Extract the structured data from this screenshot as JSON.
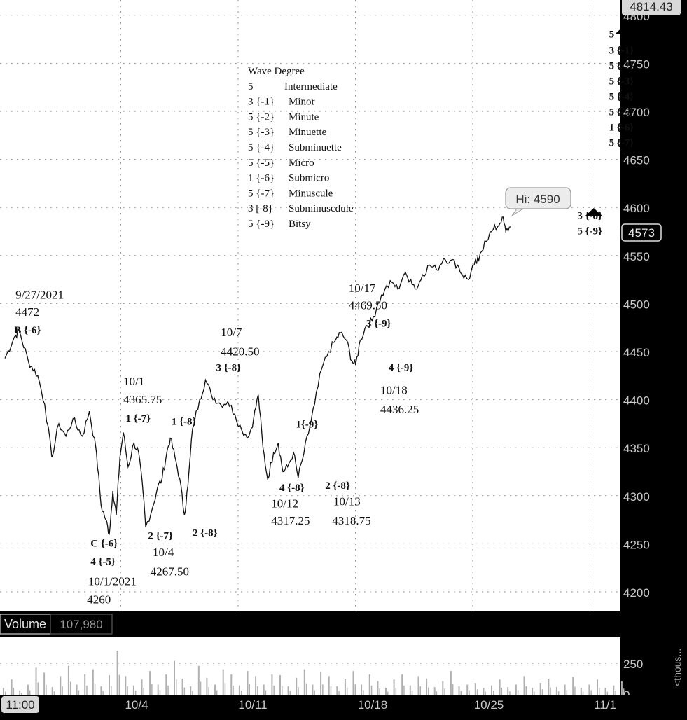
{
  "chart_data": {
    "type": "line",
    "symbol_price_badge": "4573",
    "top_price_badge": "4814.43",
    "price_axis": {
      "ticks": [
        4200,
        4250,
        4300,
        4350,
        4400,
        4450,
        4500,
        4550,
        4600,
        4650,
        4700,
        4750,
        4800
      ],
      "range": [
        4181,
        4814
      ]
    },
    "time_axis": {
      "labels": [
        "11:00",
        "10/4",
        "10/11",
        "10/18",
        "10/25",
        "11/1"
      ]
    },
    "volume_panel": {
      "label": "Volume",
      "value": "107,980",
      "ticks": [
        "250"
      ],
      "side_label": "<thous..."
    },
    "hi_bubble": "Hi: 4590",
    "series": [
      {
        "values": [
          [
            0,
            4443
          ],
          [
            0.4,
            4465
          ],
          [
            0.6,
            4472
          ],
          [
            1.0,
            4440
          ],
          [
            1.4,
            4425
          ],
          [
            1.7,
            4395
          ],
          [
            2.0,
            4340
          ],
          [
            2.3,
            4375
          ],
          [
            2.6,
            4362
          ],
          [
            2.9,
            4380
          ],
          [
            3.3,
            4362
          ],
          [
            3.6,
            4388
          ],
          [
            3.9,
            4345
          ],
          [
            4.1,
            4290
          ],
          [
            4.3,
            4275
          ],
          [
            4.45,
            4260
          ],
          [
            4.6,
            4305
          ],
          [
            4.75,
            4280
          ],
          [
            4.9,
            4340
          ],
          [
            5.05,
            4365.75
          ],
          [
            5.25,
            4330
          ],
          [
            5.5,
            4355
          ],
          [
            5.7,
            4345
          ],
          [
            5.9,
            4300
          ],
          [
            6.0,
            4267.5
          ],
          [
            6.3,
            4288
          ],
          [
            6.5,
            4308
          ],
          [
            6.7,
            4318
          ],
          [
            6.9,
            4345
          ],
          [
            7.05,
            4360
          ],
          [
            7.25,
            4340
          ],
          [
            7.45,
            4318
          ],
          [
            7.65,
            4280
          ],
          [
            7.8,
            4310
          ],
          [
            8.0,
            4370
          ],
          [
            8.3,
            4400
          ],
          [
            8.55,
            4420.5
          ],
          [
            8.8,
            4405
          ],
          [
            9.2,
            4395
          ],
          [
            9.5,
            4398
          ],
          [
            9.8,
            4385
          ],
          [
            10.1,
            4368
          ],
          [
            10.4,
            4362
          ],
          [
            10.6,
            4380
          ],
          [
            10.8,
            4405
          ],
          [
            11.0,
            4350
          ],
          [
            11.2,
            4317.25
          ],
          [
            11.45,
            4345
          ],
          [
            11.65,
            4355
          ],
          [
            11.85,
            4325
          ],
          [
            12.05,
            4330
          ],
          [
            12.3,
            4345
          ],
          [
            12.5,
            4318.75
          ],
          [
            12.75,
            4345
          ],
          [
            13.0,
            4372
          ],
          [
            13.2,
            4395
          ],
          [
            13.5,
            4432
          ],
          [
            13.8,
            4450
          ],
          [
            14.1,
            4462
          ],
          [
            14.3,
            4469.5
          ],
          [
            14.55,
            4462
          ],
          [
            14.8,
            4440
          ],
          [
            14.95,
            4436.25
          ],
          [
            15.15,
            4462
          ],
          [
            15.4,
            4477
          ],
          [
            15.65,
            4482
          ],
          [
            15.9,
            4500
          ],
          [
            16.2,
            4515
          ],
          [
            16.5,
            4522
          ],
          [
            16.75,
            4515
          ],
          [
            17.0,
            4530
          ],
          [
            17.3,
            4525
          ],
          [
            17.55,
            4515
          ],
          [
            17.8,
            4530
          ],
          [
            18.1,
            4540
          ],
          [
            18.4,
            4535
          ],
          [
            18.7,
            4547
          ],
          [
            19.0,
            4545
          ],
          [
            19.3,
            4540
          ],
          [
            19.5,
            4530
          ],
          [
            19.75,
            4525
          ],
          [
            20.0,
            4540
          ],
          [
            20.2,
            4545
          ],
          [
            20.45,
            4565
          ],
          [
            20.75,
            4575
          ],
          [
            21.0,
            4580
          ],
          [
            21.2,
            4590
          ],
          [
            21.35,
            4575
          ],
          [
            21.55,
            4580
          ]
        ]
      },
      {
        "name": "volume",
        "values": [
          40,
          90,
          25,
          60,
          160,
          130,
          45,
          110,
          170,
          60,
          120,
          150,
          50,
          115,
          260,
          110,
          55,
          90,
          140,
          60,
          120,
          200,
          95,
          50,
          170,
          100,
          60,
          150,
          120,
          55,
          140,
          110,
          60,
          120,
          115,
          50,
          100,
          150,
          60,
          135,
          110,
          50,
          95,
          140,
          60,
          120,
          80,
          40,
          90,
          120,
          55,
          110,
          95,
          45,
          80,
          140,
          50,
          60,
          70,
          40,
          55,
          90,
          45,
          60,
          110,
          40,
          70,
          95,
          45,
          60,
          105,
          40,
          60,
          90,
          40,
          55,
          80
        ]
      }
    ],
    "annotations": [
      {
        "x": 0.45,
        "y": 4505,
        "text": "9/27/2021"
      },
      {
        "x": 0.45,
        "y": 4487,
        "text": "4472"
      },
      {
        "x": 0.4,
        "y": 4469,
        "text": "B {-6}",
        "bold": true
      },
      {
        "x": 5.05,
        "y": 4415,
        "text": "10/1"
      },
      {
        "x": 5.05,
        "y": 4396,
        "text": "4365.75"
      },
      {
        "x": 5.15,
        "y": 4377,
        "text": "1 {-7}",
        "bold": true
      },
      {
        "x": 7.1,
        "y": 4374,
        "text": "1 {-8}",
        "bold": true
      },
      {
        "x": 3.65,
        "y": 4247,
        "text": "C {-6}",
        "bold": true
      },
      {
        "x": 3.65,
        "y": 4228,
        "text": "4 {-5}",
        "bold": true
      },
      {
        "x": 3.55,
        "y": 4207,
        "text": "10/1/2021"
      },
      {
        "x": 3.5,
        "y": 4188,
        "text": "4260"
      },
      {
        "x": 6.1,
        "y": 4255,
        "text": "2 {-7}",
        "bold": true
      },
      {
        "x": 6.3,
        "y": 4237,
        "text": "10/4"
      },
      {
        "x": 6.2,
        "y": 4217,
        "text": "4267.50"
      },
      {
        "x": 8.0,
        "y": 4258,
        "text": "2 {-8}",
        "bold": true
      },
      {
        "x": 9.2,
        "y": 4466,
        "text": "10/7"
      },
      {
        "x": 9.2,
        "y": 4446,
        "text": "4420.50"
      },
      {
        "x": 9.0,
        "y": 4430,
        "text": "3 {-8}",
        "bold": true
      },
      {
        "x": 12.4,
        "y": 4371,
        "text": "1{-9}",
        "bold": true
      },
      {
        "x": 11.7,
        "y": 4305,
        "text": "4 {-8}",
        "bold": true
      },
      {
        "x": 11.35,
        "y": 4288,
        "text": "10/12"
      },
      {
        "x": 11.35,
        "y": 4270,
        "text": "4317.25"
      },
      {
        "x": 13.65,
        "y": 4307,
        "text": "2 {-8}",
        "bold": true
      },
      {
        "x": 14.0,
        "y": 4290,
        "text": "10/13"
      },
      {
        "x": 13.95,
        "y": 4270,
        "text": "4318.75"
      },
      {
        "x": 14.65,
        "y": 4512,
        "text": "10/17"
      },
      {
        "x": 14.65,
        "y": 4494,
        "text": "4469.50"
      },
      {
        "x": 15.4,
        "y": 4476,
        "text": "3 {-9}",
        "bold": true
      },
      {
        "x": 16.35,
        "y": 4430,
        "text": "4 {-9}",
        "bold": true
      },
      {
        "x": 16.0,
        "y": 4406,
        "text": "10/18"
      },
      {
        "x": 16.0,
        "y": 4386,
        "text": "4436.25"
      },
      {
        "x": 24.4,
        "y": 4588,
        "text": "3 {-8}",
        "bold": true
      },
      {
        "x": 24.4,
        "y": 4572,
        "text": "5 {-9}",
        "bold": true
      },
      {
        "x": 25.75,
        "y": 4777,
        "text": "5",
        "bold": true
      },
      {
        "x": 25.75,
        "y": 4760,
        "text": "3 {-1}",
        "bold": true
      },
      {
        "x": 25.75,
        "y": 4744,
        "text": "5 {-2}",
        "bold": true
      },
      {
        "x": 25.75,
        "y": 4728,
        "text": "5 {-3}",
        "bold": true
      },
      {
        "x": 25.75,
        "y": 4712,
        "text": "5 {-4}",
        "bold": true
      },
      {
        "x": 25.75,
        "y": 4696,
        "text": "5 {-5}",
        "bold": true
      },
      {
        "x": 25.75,
        "y": 4680,
        "text": "1 {-6}",
        "bold": true
      },
      {
        "x": 25.75,
        "y": 4664,
        "text": "5 {-7}",
        "bold": true
      }
    ],
    "markers": [
      {
        "x": 25.1,
        "y": 4595
      },
      {
        "x": 26.4,
        "y": 4785
      }
    ],
    "legend": [
      {
        "code": "Wave Degree",
        "name": ""
      },
      {
        "code": "5",
        "name": "Intermediate"
      },
      {
        "code": "3 {-1}",
        "name": "Minor"
      },
      {
        "code": "5 {-2}",
        "name": "Minute"
      },
      {
        "code": "5 {-3}",
        "name": "Minuette"
      },
      {
        "code": "5 {-4}",
        "name": "Subminuette"
      },
      {
        "code": "5 {-5}",
        "name": "Micro"
      },
      {
        "code": "1 {-6}",
        "name": "Submicro"
      },
      {
        "code": "5 {-7}",
        "name": "Minuscule"
      },
      {
        "code": "3 [-8}",
        "name": "Subminuscdule"
      },
      {
        "code": "5 {-9}",
        "name": "Bitsy"
      }
    ],
    "grid": true
  },
  "colors": {
    "plot_bg": "#ffffff",
    "frame_bg": "#000000",
    "price_line": "#111111",
    "grid": "#9a9a9a",
    "volume_bar": "#b0b0b0",
    "badge_bg": "#e8e8e8"
  }
}
